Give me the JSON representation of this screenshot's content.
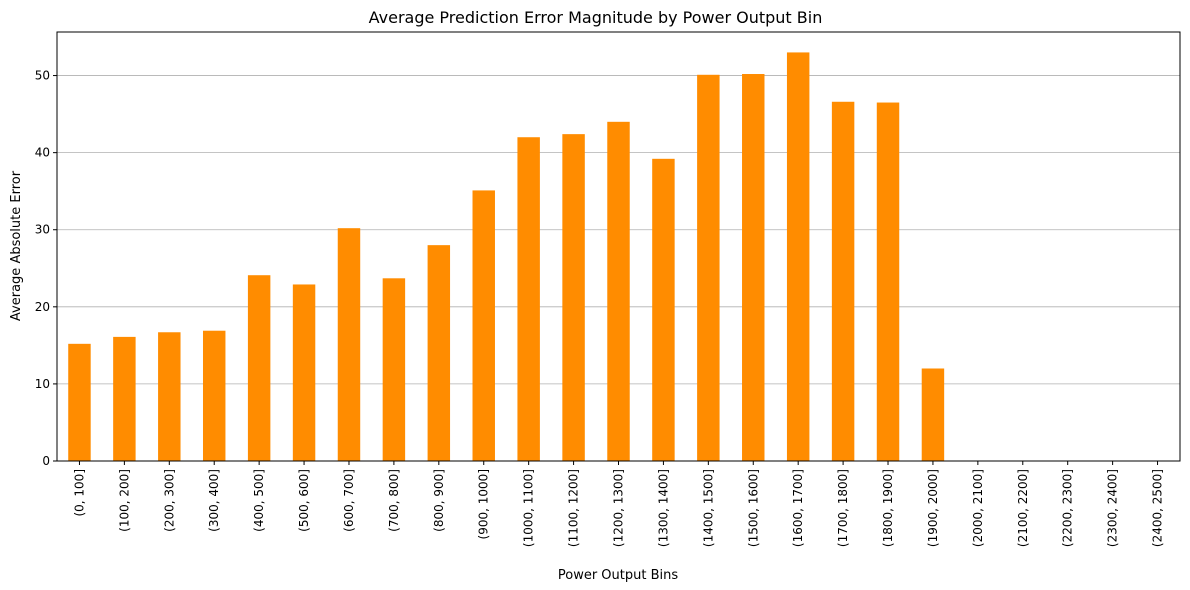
{
  "chart_data": {
    "type": "bar",
    "title": "Average Prediction Error Magnitude by Power Output Bin",
    "xlabel": "Power Output Bins",
    "ylabel": "Average Absolute Error",
    "categories": [
      "(0, 100]",
      "(100, 200]",
      "(200, 300]",
      "(300, 400]",
      "(400, 500]",
      "(500, 600]",
      "(600, 700]",
      "(700, 800]",
      "(800, 900]",
      "(900, 1000]",
      "(1000, 1100]",
      "(1100, 1200]",
      "(1200, 1300]",
      "(1300, 1400]",
      "(1400, 1500]",
      "(1500, 1600]",
      "(1600, 1700]",
      "(1700, 1800]",
      "(1800, 1900]",
      "(1900, 2000]",
      "(2000, 2100]",
      "(2100, 2200]",
      "(2200, 2300]",
      "(2300, 2400]",
      "(2400, 2500]"
    ],
    "values": [
      15.2,
      16.1,
      16.7,
      16.9,
      24.1,
      22.9,
      30.2,
      23.7,
      28.0,
      35.1,
      42.0,
      42.4,
      44.0,
      39.2,
      50.1,
      50.2,
      53.0,
      46.6,
      46.5,
      12.0,
      0,
      0,
      0,
      0,
      0
    ],
    "ylim": [
      0,
      55.65
    ],
    "yticks": [
      0,
      10,
      20,
      30,
      40,
      50
    ],
    "grid": "y-major",
    "bar_color": "#ff8c00",
    "legend": "none"
  }
}
